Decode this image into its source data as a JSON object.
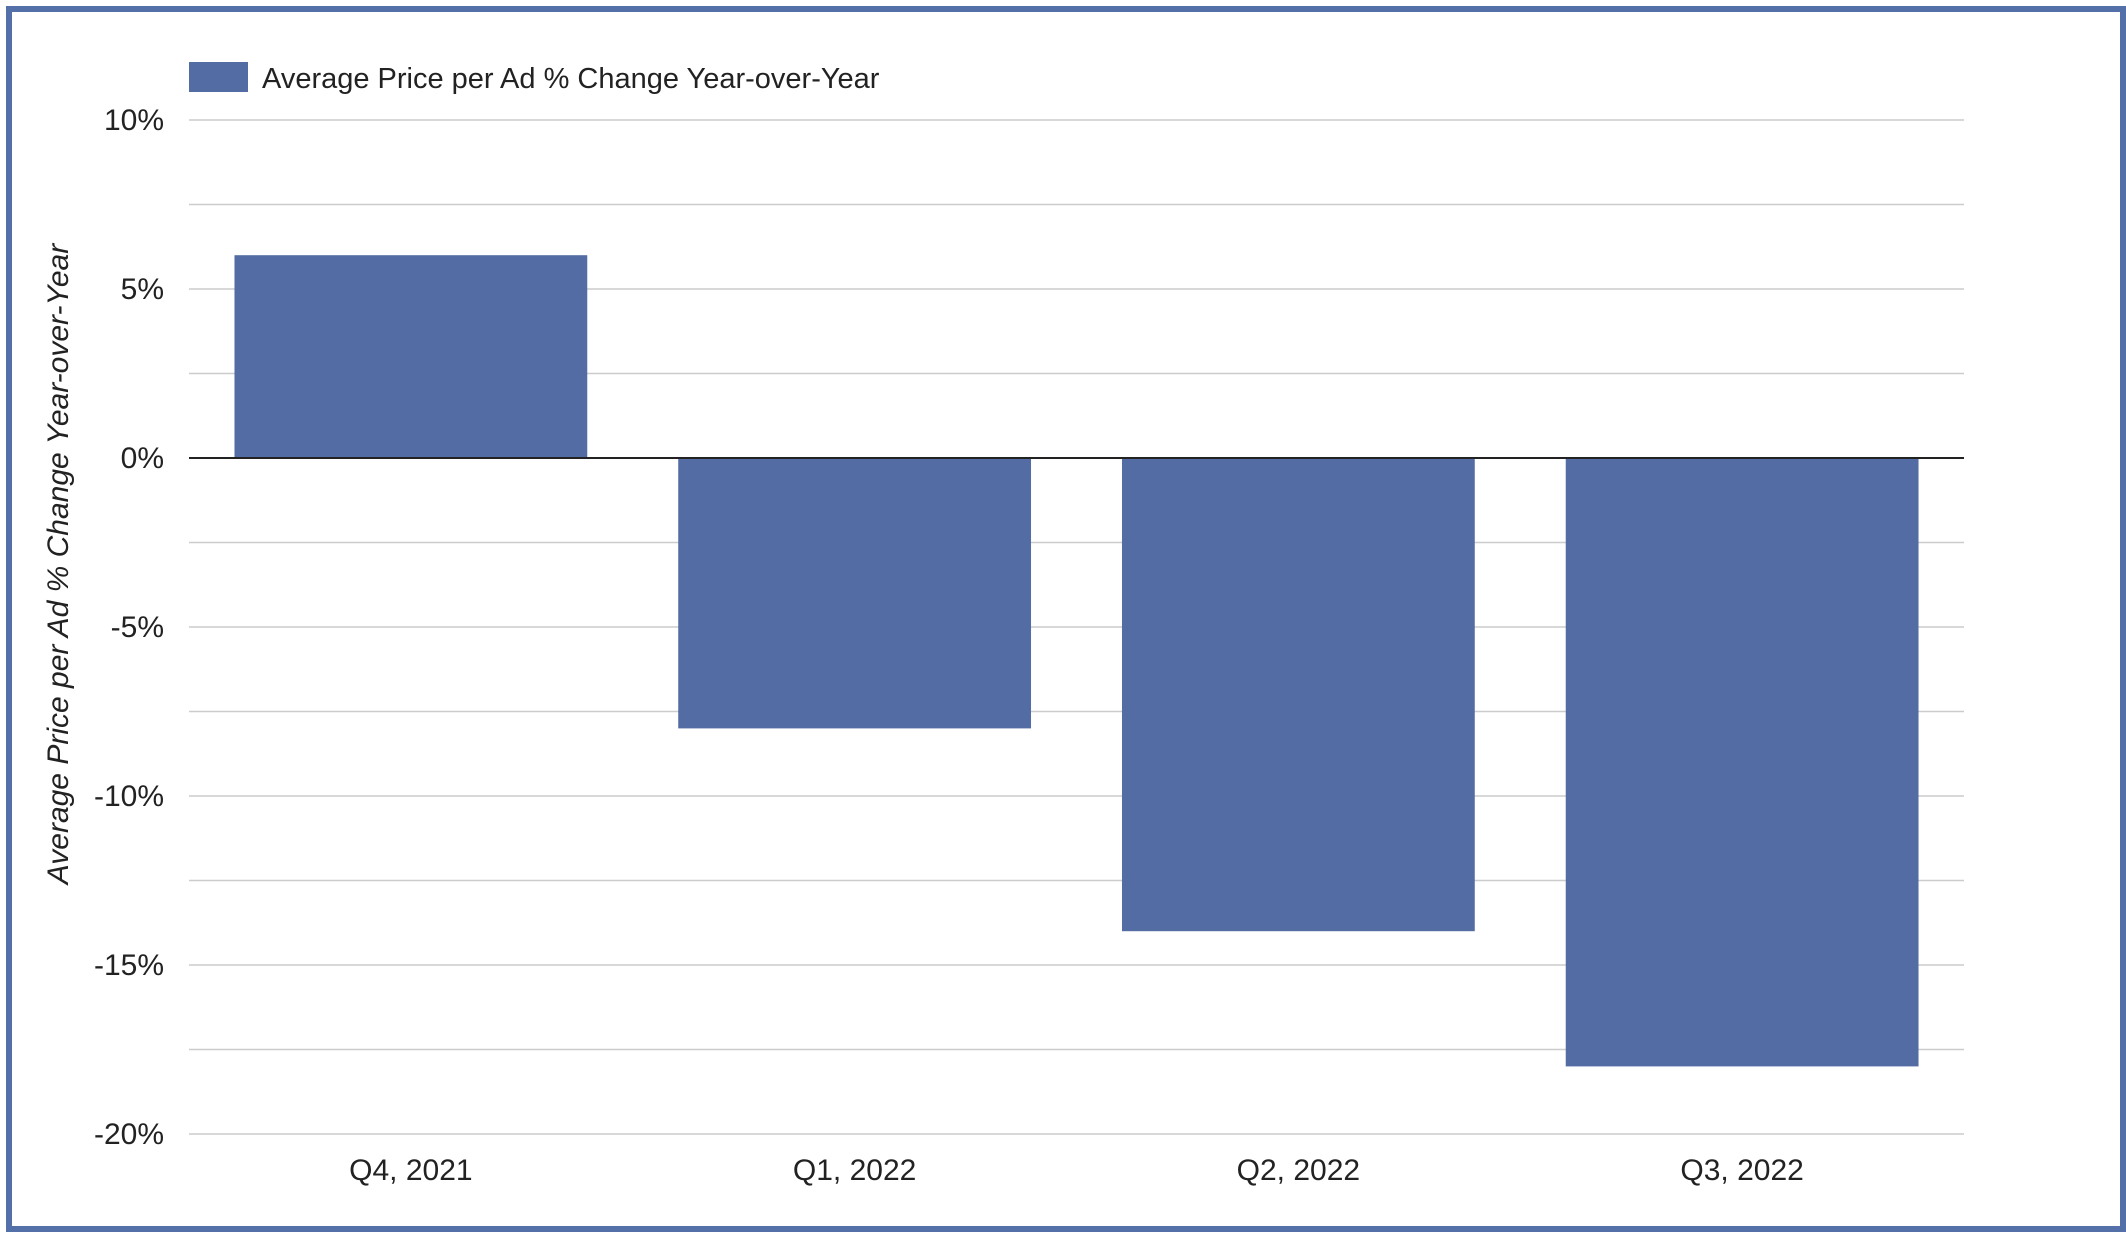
{
  "chart_data": {
    "type": "bar",
    "categories": [
      "Q4, 2021",
      "Q1, 2022",
      "Q2, 2022",
      "Q3, 2022"
    ],
    "series": [
      {
        "name": "Average Price per Ad % Change Year-over-Year",
        "values": [
          6,
          -8,
          -14,
          -18
        ]
      }
    ],
    "values": [
      6,
      -8,
      -14,
      -18
    ],
    "title": "",
    "xlabel": "",
    "ylabel": "Average Price per Ad % Change Year-over-Year",
    "ylim": [
      -20,
      10
    ],
    "yticks": [
      10,
      5,
      0,
      -5,
      -10,
      -15,
      -20
    ],
    "ytick_labels": [
      "10%",
      "5%",
      "0%",
      "-5%",
      "-10%",
      "-15%",
      "-20%"
    ],
    "grid": true,
    "legend_position": "top-left",
    "colors": {
      "bar": "#536ca3",
      "frame": "#5470a8",
      "gridline": "#cccccc",
      "zero_line": "#222222"
    }
  }
}
